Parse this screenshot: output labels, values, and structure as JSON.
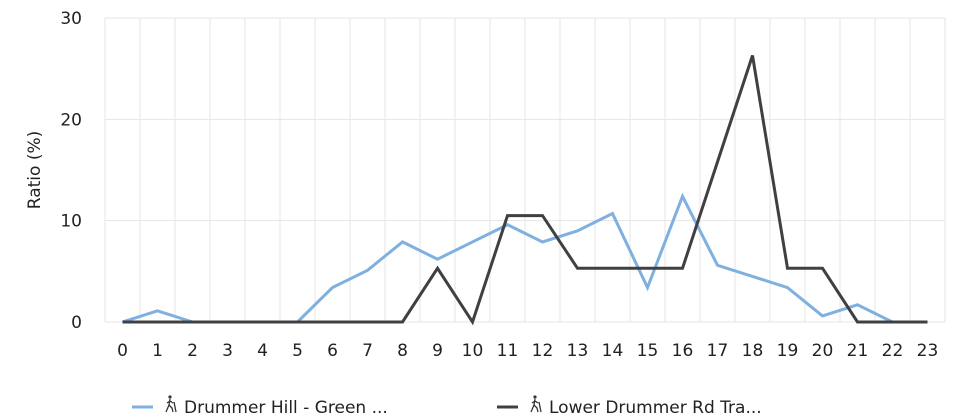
{
  "chart_data": {
    "type": "line",
    "title": "",
    "xlabel": "",
    "ylabel": "Ratio (%)",
    "categories": [
      "0",
      "1",
      "2",
      "3",
      "4",
      "5",
      "6",
      "7",
      "8",
      "9",
      "10",
      "11",
      "12",
      "13",
      "14",
      "15",
      "16",
      "17",
      "18",
      "19",
      "20",
      "21",
      "22",
      "23"
    ],
    "ylim": [
      0,
      30
    ],
    "yticks": [
      "0",
      "10",
      "20",
      "30"
    ],
    "grid": true,
    "legend_position": "bottom",
    "series": [
      {
        "name": "Drummer Hill - Green ...",
        "color": "#7fb0e0",
        "icon": "hiker-icon",
        "values": [
          0,
          1.1,
          0,
          0,
          0,
          0,
          3.4,
          5.1,
          7.9,
          6.2,
          7.9,
          9.6,
          7.9,
          9.0,
          10.7,
          3.4,
          12.4,
          5.6,
          4.5,
          3.4,
          0.6,
          1.7,
          0,
          0
        ]
      },
      {
        "name": "Lower Drummer Rd Tra...",
        "color": "#404040",
        "icon": "hiker-icon",
        "values": [
          0,
          0,
          0,
          0,
          0,
          0,
          0,
          0,
          0,
          5.3,
          0,
          10.5,
          10.5,
          5.3,
          5.3,
          5.3,
          5.3,
          15.8,
          26.3,
          5.3,
          5.3,
          0,
          0,
          0
        ]
      }
    ]
  }
}
